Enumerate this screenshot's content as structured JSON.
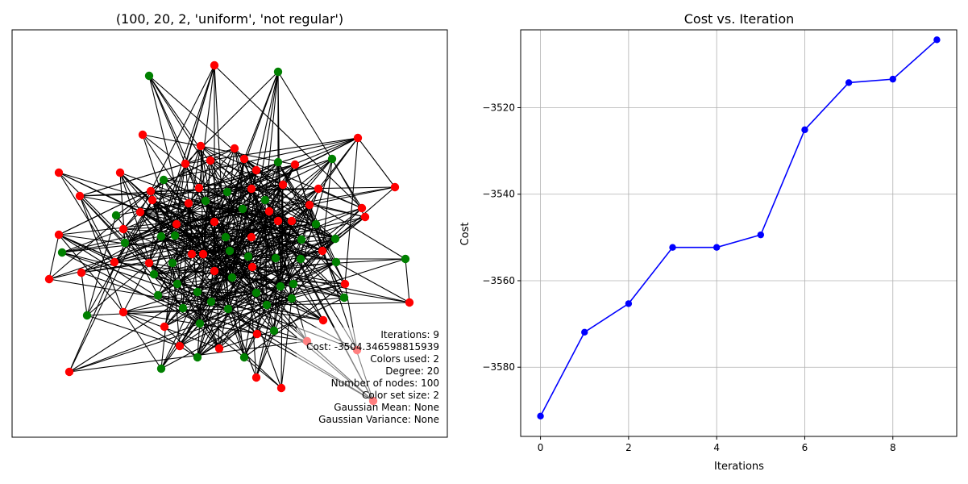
{
  "chart_data": [
    {
      "type": "network",
      "title": "(100, 20, 2, 'uniform', 'not regular')",
      "node_colors": [
        "#ff0000",
        "#008000"
      ],
      "edge_color": "#000000",
      "info_lines": [
        "Iterations: 9",
        "Cost: -3504.346598815939",
        "Colors used: 2",
        "Degree: 20",
        "Number of nodes: 100",
        "Color set size: 2",
        "Gaussian Mean: None",
        "Gaussian Variance: None"
      ]
    },
    {
      "type": "line",
      "title": "Cost vs. Iteration",
      "xlabel": "Iterations",
      "ylabel": "Cost",
      "x": [
        0,
        1,
        2,
        3,
        4,
        5,
        6,
        7,
        8,
        9
      ],
      "values": [
        -3591.3,
        -3571.9,
        -3565.3,
        -3552.3,
        -3552.3,
        -3549.4,
        -3525.1,
        -3514.2,
        -3513.4,
        -3504.3
      ],
      "xlim": [
        -0.45,
        9.45
      ],
      "ylim": [
        -3596.0,
        -3502.0
      ],
      "xticks": [
        0,
        2,
        4,
        6,
        8
      ],
      "yticks": [
        -3580,
        -3560,
        -3540,
        -3520
      ],
      "ytick_labels": [
        "−3580",
        "−3560",
        "−3540",
        "−3520"
      ],
      "grid": true,
      "color": "#0000ff"
    }
  ]
}
